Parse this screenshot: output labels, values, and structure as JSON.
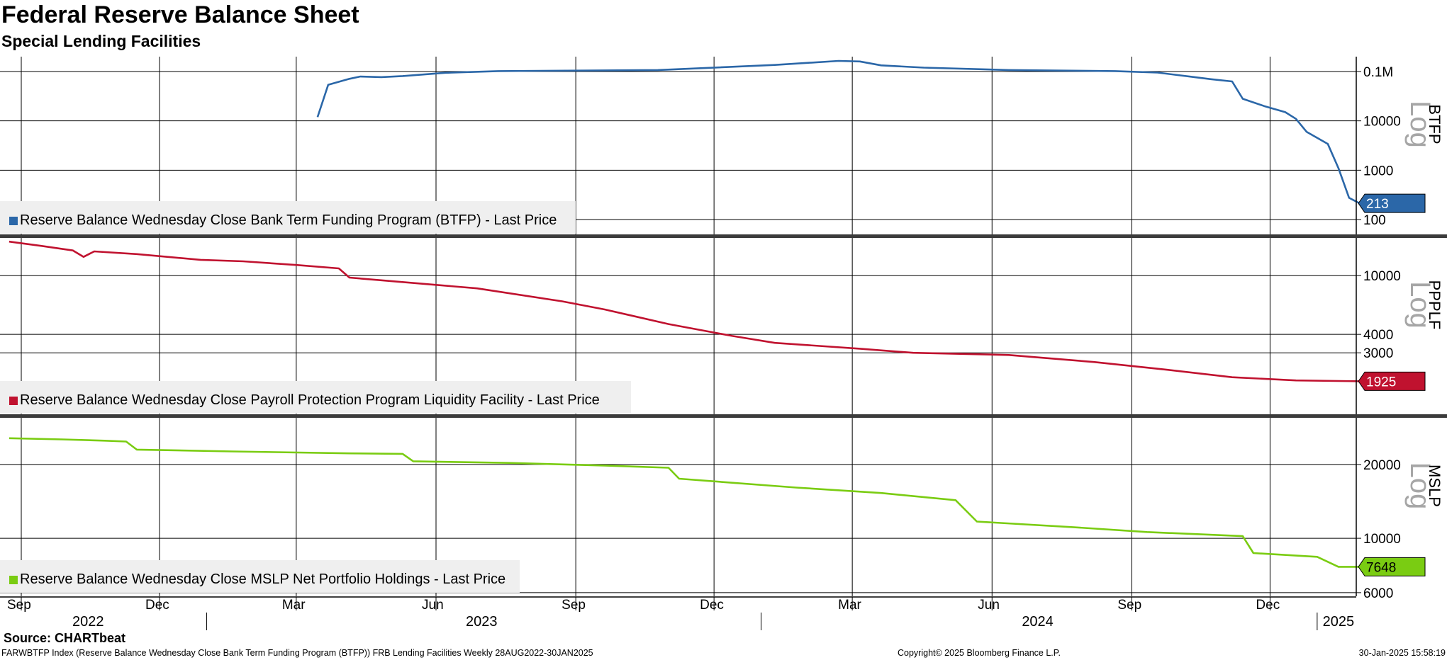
{
  "title": "Federal Reserve Balance Sheet",
  "subtitle": "Special Lending Facilities",
  "footer": {
    "source": "Source: CHARTbeat",
    "description": "FARWBTFP Index (Reserve Balance Wednesday Close Bank Term Funding Program (BTFP)) FRB Lending Facilities  Weekly 28AUG2022-30JAN2025",
    "copyright": "Copyright© 2025 Bloomberg Finance L.P.",
    "timestamp": "30-Jan-2025 15:58:19"
  },
  "colors": {
    "btfp": "#2b67a8",
    "ppplf": "#c0122f",
    "mslp": "#7acc12",
    "grid": "#000000",
    "legend_bg": "#efefef",
    "watermark": "#a6a6a6"
  },
  "chart_data": {
    "type": "line",
    "x_axis": {
      "month_ticks": [
        "Sep",
        "Dec",
        "Mar",
        "Jun",
        "Sep",
        "Dec",
        "Mar",
        "Jun",
        "Sep",
        "Dec"
      ],
      "year_labels": [
        "2022",
        "2023",
        "2024",
        "2025"
      ]
    },
    "panels": [
      {
        "name": "BTFP",
        "legend": "Reserve Balance Wednesday Close Bank Term Funding Program (BTFP) - Last Price",
        "last_value": "213",
        "watermark": "Log",
        "scale": "log",
        "ylim": [
          50,
          200000
        ],
        "y_ticks": [
          100,
          1000,
          10000,
          100000
        ],
        "y_tick_labels": [
          "100",
          "1000",
          "10000",
          "0.1M"
        ],
        "series": [
          {
            "date": "2023-03-15",
            "value": 11900
          },
          {
            "date": "2023-03-22",
            "value": 53700
          },
          {
            "date": "2023-04-05",
            "value": 71000
          },
          {
            "date": "2023-04-12",
            "value": 79000
          },
          {
            "date": "2023-04-26",
            "value": 77000
          },
          {
            "date": "2023-05-10",
            "value": 81000
          },
          {
            "date": "2023-06-07",
            "value": 94000
          },
          {
            "date": "2023-07-12",
            "value": 102000
          },
          {
            "date": "2023-10-25",
            "value": 107000
          },
          {
            "date": "2024-01-10",
            "value": 136000
          },
          {
            "date": "2024-02-21",
            "value": 164000
          },
          {
            "date": "2024-03-06",
            "value": 160000
          },
          {
            "date": "2024-03-20",
            "value": 133000
          },
          {
            "date": "2024-04-17",
            "value": 120000
          },
          {
            "date": "2024-06-12",
            "value": 107000
          },
          {
            "date": "2024-08-21",
            "value": 102000
          },
          {
            "date": "2024-09-18",
            "value": 95000
          },
          {
            "date": "2024-10-09",
            "value": 79000
          },
          {
            "date": "2024-10-23",
            "value": 70000
          },
          {
            "date": "2024-11-06",
            "value": 63000
          },
          {
            "date": "2024-11-13",
            "value": 28000
          },
          {
            "date": "2024-11-27",
            "value": 20000
          },
          {
            "date": "2024-12-11",
            "value": 15000
          },
          {
            "date": "2024-12-18",
            "value": 11000
          },
          {
            "date": "2024-12-25",
            "value": 6000
          },
          {
            "date": "2025-01-08",
            "value": 3400
          },
          {
            "date": "2025-01-15",
            "value": 1100
          },
          {
            "date": "2025-01-22",
            "value": 275
          },
          {
            "date": "2025-01-29",
            "value": 213
          }
        ]
      },
      {
        "name": "PPPLF",
        "legend": "Reserve Balance Wednesday Close Payroll Protection Program Liquidity Facility - Last Price",
        "last_value": "1925",
        "watermark": "Log",
        "scale": "log",
        "ylim": [
          1150,
          18000
        ],
        "y_ticks": [
          3000,
          4000,
          10000
        ],
        "y_tick_labels": [
          "3000",
          "4000",
          "10000"
        ],
        "series": [
          {
            "date": "2022-08-24",
            "value": 17000
          },
          {
            "date": "2022-09-14",
            "value": 15900
          },
          {
            "date": "2022-10-05",
            "value": 14800
          },
          {
            "date": "2022-10-12",
            "value": 13400
          },
          {
            "date": "2022-10-19",
            "value": 14600
          },
          {
            "date": "2022-11-16",
            "value": 14000
          },
          {
            "date": "2022-12-28",
            "value": 12800
          },
          {
            "date": "2023-01-25",
            "value": 12500
          },
          {
            "date": "2023-03-01",
            "value": 11800
          },
          {
            "date": "2023-03-29",
            "value": 11200
          },
          {
            "date": "2023-04-05",
            "value": 9700
          },
          {
            "date": "2023-04-26",
            "value": 9300
          },
          {
            "date": "2023-06-28",
            "value": 8200
          },
          {
            "date": "2023-08-23",
            "value": 6700
          },
          {
            "date": "2023-09-20",
            "value": 5900
          },
          {
            "date": "2023-11-01",
            "value": 4700
          },
          {
            "date": "2023-12-13",
            "value": 3900
          },
          {
            "date": "2024-01-10",
            "value": 3500
          },
          {
            "date": "2024-03-06",
            "value": 3200
          },
          {
            "date": "2024-04-10",
            "value": 3000
          },
          {
            "date": "2024-06-12",
            "value": 2900
          },
          {
            "date": "2024-08-07",
            "value": 2600
          },
          {
            "date": "2024-09-25",
            "value": 2300
          },
          {
            "date": "2024-11-06",
            "value": 2050
          },
          {
            "date": "2024-12-18",
            "value": 1950
          },
          {
            "date": "2025-01-29",
            "value": 1925
          }
        ]
      },
      {
        "name": "MSLP",
        "legend": "Reserve Balance Wednesday Close MSLP Net Portfolio Holdings - Last Price",
        "last_value": "7648",
        "watermark": "Log",
        "scale": "log",
        "ylim": [
          5800,
          31000
        ],
        "y_ticks": [
          6000,
          10000,
          20000
        ],
        "y_tick_labels": [
          "6000",
          "10000",
          "20000"
        ],
        "series": [
          {
            "date": "2022-08-24",
            "value": 25600
          },
          {
            "date": "2022-09-28",
            "value": 25300
          },
          {
            "date": "2022-10-26",
            "value": 25000
          },
          {
            "date": "2022-11-09",
            "value": 24800
          },
          {
            "date": "2022-11-16",
            "value": 23000
          },
          {
            "date": "2023-01-18",
            "value": 22600
          },
          {
            "date": "2023-04-05",
            "value": 22200
          },
          {
            "date": "2023-05-10",
            "value": 22100
          },
          {
            "date": "2023-05-17",
            "value": 20600
          },
          {
            "date": "2023-07-19",
            "value": 20300
          },
          {
            "date": "2023-09-20",
            "value": 19800
          },
          {
            "date": "2023-11-01",
            "value": 19400
          },
          {
            "date": "2023-11-08",
            "value": 17500
          },
          {
            "date": "2024-01-24",
            "value": 16100
          },
          {
            "date": "2024-03-20",
            "value": 15300
          },
          {
            "date": "2024-05-08",
            "value": 14300
          },
          {
            "date": "2024-05-22",
            "value": 11700
          },
          {
            "date": "2024-07-24",
            "value": 11100
          },
          {
            "date": "2024-09-11",
            "value": 10600
          },
          {
            "date": "2024-11-13",
            "value": 10200
          },
          {
            "date": "2024-11-20",
            "value": 8700
          },
          {
            "date": "2025-01-01",
            "value": 8400
          },
          {
            "date": "2025-01-15",
            "value": 7648
          },
          {
            "date": "2025-01-29",
            "value": 7648
          }
        ]
      }
    ]
  }
}
